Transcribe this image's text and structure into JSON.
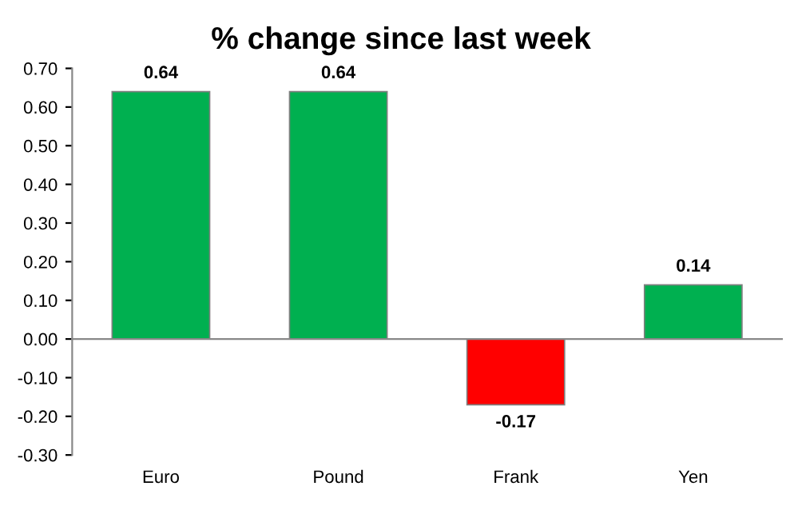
{
  "chart_data": {
    "type": "bar",
    "title": "% change since last week",
    "categories": [
      "Euro",
      "Pound",
      "Frank",
      "Yen"
    ],
    "values": [
      0.64,
      0.64,
      -0.17,
      0.14
    ],
    "colors": [
      "#00b050",
      "#00b050",
      "#ff0000",
      "#00b050"
    ],
    "ylim": [
      -0.3,
      0.7
    ],
    "yticks": [
      {
        "value": -0.3,
        "label": "-0.30"
      },
      {
        "value": -0.2,
        "label": "-0.20"
      },
      {
        "value": -0.1,
        "label": "-0.10"
      },
      {
        "value": 0,
        "label": "0.00"
      },
      {
        "value": 0.1,
        "label": "0.10"
      },
      {
        "value": 0.2,
        "label": "0.20"
      },
      {
        "value": 0.3,
        "label": "0.30"
      },
      {
        "value": 0.4,
        "label": "0.40"
      },
      {
        "value": 0.5,
        "label": "0.50"
      },
      {
        "value": 0.6,
        "label": "0.60"
      },
      {
        "value": 0.7,
        "label": "0.70"
      }
    ],
    "data_labels": true,
    "legend": false
  }
}
